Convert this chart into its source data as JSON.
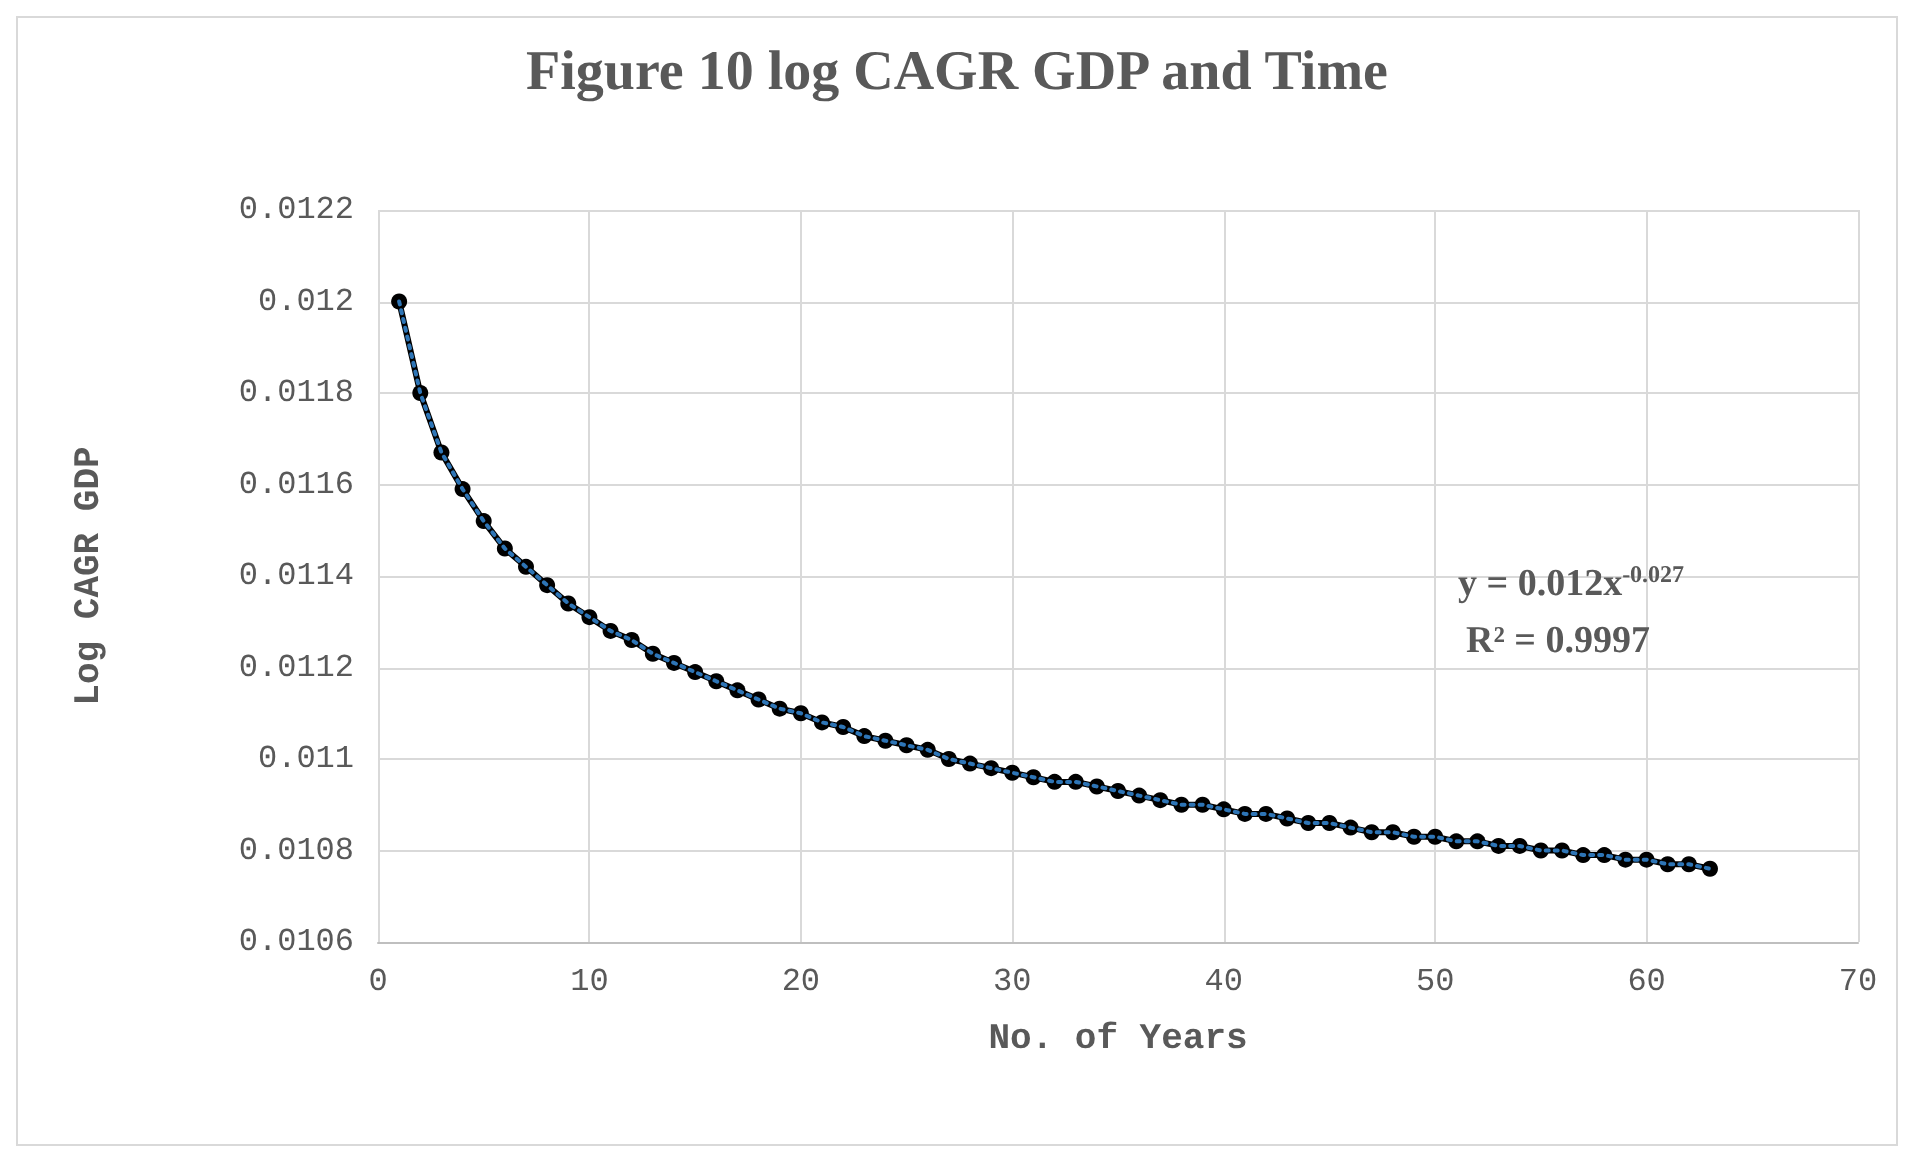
{
  "chart_data": {
    "type": "line",
    "title": "Figure 10 log CAGR GDP and Time",
    "xlabel": "No. of Years",
    "ylabel": "Log CAGR GDP",
    "x": [
      1,
      2,
      3,
      4,
      5,
      6,
      7,
      8,
      9,
      10,
      11,
      12,
      13,
      14,
      15,
      16,
      17,
      18,
      19,
      20,
      21,
      22,
      23,
      24,
      25,
      26,
      27,
      28,
      29,
      30,
      31,
      32,
      33,
      34,
      35,
      36,
      37,
      38,
      39,
      40,
      41,
      42,
      43,
      44,
      45,
      46,
      47,
      48,
      49,
      50,
      51,
      52,
      53,
      54,
      55,
      56,
      57,
      58,
      59,
      60,
      61,
      62,
      63
    ],
    "series": [
      {
        "color": "#000000",
        "marker": "circle",
        "line_style": "solid",
        "values": [
          0.012,
          0.0118,
          0.01167,
          0.01159,
          0.01152,
          0.01146,
          0.01142,
          0.01138,
          0.01134,
          0.01131,
          0.01128,
          0.01126,
          0.01123,
          0.01121,
          0.01119,
          0.01117,
          0.01115,
          0.01113,
          0.01111,
          0.0111,
          0.01108,
          0.01107,
          0.01105,
          0.01104,
          0.01103,
          0.01102,
          0.011,
          0.01099,
          0.01098,
          0.01097,
          0.01096,
          0.01095,
          0.01095,
          0.01094,
          0.01093,
          0.01092,
          0.01091,
          0.0109,
          0.0109,
          0.01089,
          0.01088,
          0.01088,
          0.01087,
          0.01086,
          0.01086,
          0.01085,
          0.01084,
          0.01084,
          0.01083,
          0.01083,
          0.01082,
          0.01082,
          0.01081,
          0.01081,
          0.0108,
          0.0108,
          0.01079,
          0.01079,
          0.01078,
          0.01078,
          0.01077,
          0.01077,
          0.01076
        ]
      },
      {
        "color": "#2e75b6",
        "marker": "none",
        "line_style": "dotted",
        "values": [
          0.012,
          0.0118,
          0.01167,
          0.01159,
          0.01152,
          0.01146,
          0.01142,
          0.01138,
          0.01134,
          0.01131,
          0.01128,
          0.01126,
          0.01123,
          0.01121,
          0.01119,
          0.01117,
          0.01115,
          0.01113,
          0.01111,
          0.0111,
          0.01108,
          0.01107,
          0.01105,
          0.01104,
          0.01103,
          0.01102,
          0.011,
          0.01099,
          0.01098,
          0.01097,
          0.01096,
          0.01095,
          0.01095,
          0.01094,
          0.01093,
          0.01092,
          0.01091,
          0.0109,
          0.0109,
          0.01089,
          0.01088,
          0.01088,
          0.01087,
          0.01086,
          0.01086,
          0.01085,
          0.01084,
          0.01084,
          0.01083,
          0.01083,
          0.01082,
          0.01082,
          0.01081,
          0.01081,
          0.0108,
          0.0108,
          0.01079,
          0.01079,
          0.01078,
          0.01078,
          0.01077,
          0.01077,
          0.01076
        ]
      }
    ],
    "xlim": [
      0,
      70
    ],
    "xticks": [
      0,
      10,
      20,
      30,
      40,
      50,
      60,
      70
    ],
    "ylim": [
      0.0106,
      0.0122
    ],
    "yticks": [
      0.0106,
      0.0108,
      0.011,
      0.0112,
      0.0114,
      0.0116,
      0.0118,
      0.012,
      0.0122
    ],
    "grid": true,
    "annotations": [
      "y = 0.012x$^{-0.027}$",
      "R² = 0.9997"
    ]
  }
}
